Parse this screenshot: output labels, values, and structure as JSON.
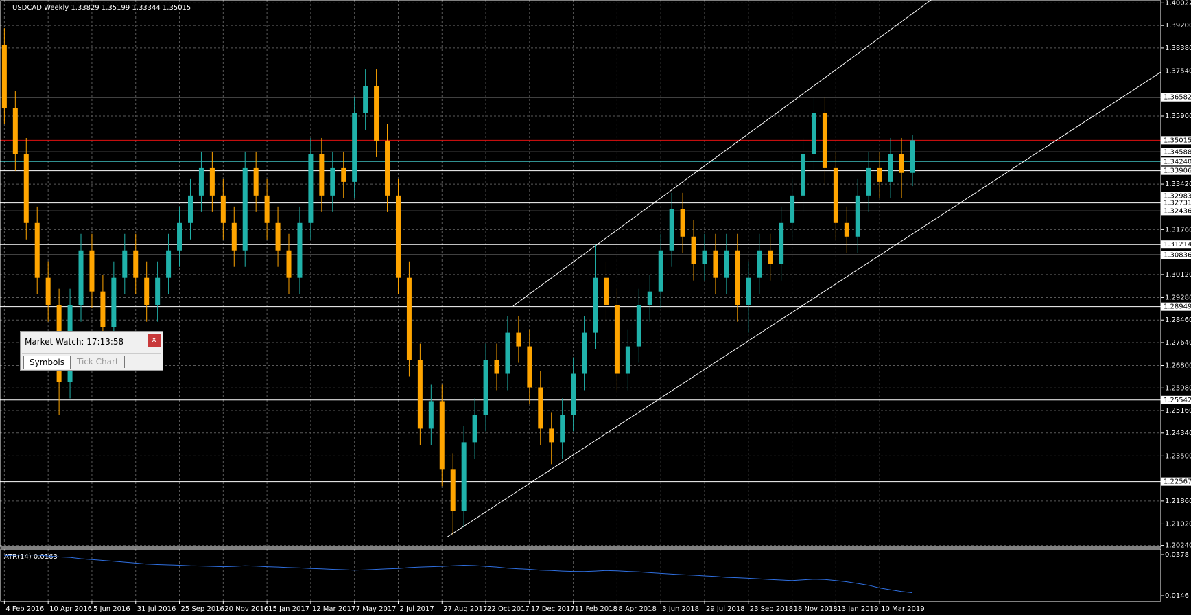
{
  "chart_data": {
    "type": "candlestick",
    "title": "USDCAD,Weekly  1.33829 1.35199 1.33344 1.35015",
    "up_color": "#20b2aa",
    "down_color": "#ffa500",
    "grid": true,
    "categories": [
      "4 Feb 2016",
      null,
      null,
      null,
      "10 Apr 2016",
      null,
      null,
      null,
      "5 Jun 2016",
      null,
      null,
      null,
      "31 Jul 2016",
      null,
      null,
      null,
      "25 Sep 2016",
      null,
      null,
      null,
      "20 Nov 2016",
      null,
      null,
      null,
      "15 Jan 2017",
      null,
      null,
      null,
      "12 Mar 2017",
      null,
      null,
      null,
      "7 May 2017",
      null,
      null,
      null,
      "2 Jul 2017",
      null,
      null,
      null,
      "27 Aug 2017",
      null,
      null,
      null,
      "22 Oct 2017",
      null,
      null,
      null,
      "17 Dec 2017",
      null,
      null,
      null,
      "11 Feb 2018",
      null,
      null,
      null,
      "8 Apr 2018",
      null,
      null,
      null,
      "3 Jun 2018",
      null,
      null,
      null,
      "29 Jul 2018",
      null,
      null,
      null,
      "23 Sep 2018",
      null,
      null,
      null,
      "18 Nov 2018",
      null,
      null,
      null,
      "13 Jan 2019",
      null,
      null,
      null,
      "10 Mar 2019",
      null,
      null,
      null
    ],
    "open": [
      1.385,
      1.362,
      1.345,
      1.32,
      1.3,
      1.29,
      1.262,
      1.29,
      1.31,
      1.295,
      1.282,
      1.3,
      1.31,
      1.3,
      1.29,
      1.3,
      1.31,
      1.32,
      1.33,
      1.34,
      1.33,
      1.32,
      1.31,
      1.34,
      1.33,
      1.32,
      1.31,
      1.3,
      1.32,
      1.345,
      1.33,
      1.34,
      1.335,
      1.36,
      1.37,
      1.35,
      1.33,
      1.3,
      1.27,
      1.245,
      1.255,
      1.23,
      1.215,
      1.24,
      1.25,
      1.27,
      1.265,
      1.28,
      1.275,
      1.26,
      1.245,
      1.24,
      1.25,
      1.265,
      1.28,
      1.3,
      1.29,
      1.265,
      1.275,
      1.29,
      1.295,
      1.31,
      1.325,
      1.315,
      1.305,
      1.31,
      1.3,
      1.31,
      1.29,
      1.3,
      1.31,
      1.305,
      1.32,
      1.33,
      1.345,
      1.36,
      1.34,
      1.32,
      1.315,
      1.33,
      1.34,
      1.335,
      1.345,
      1.33829
    ],
    "high": [
      1.391,
      1.368,
      1.351,
      1.326,
      1.306,
      1.296,
      1.296,
      1.316,
      1.316,
      1.301,
      1.306,
      1.316,
      1.316,
      1.306,
      1.306,
      1.316,
      1.326,
      1.336,
      1.346,
      1.346,
      1.336,
      1.326,
      1.346,
      1.346,
      1.336,
      1.326,
      1.316,
      1.326,
      1.351,
      1.351,
      1.346,
      1.346,
      1.366,
      1.376,
      1.376,
      1.356,
      1.336,
      1.306,
      1.276,
      1.261,
      1.261,
      1.236,
      1.246,
      1.256,
      1.276,
      1.276,
      1.286,
      1.286,
      1.281,
      1.266,
      1.251,
      1.256,
      1.271,
      1.286,
      1.312,
      1.306,
      1.296,
      1.281,
      1.296,
      1.301,
      1.316,
      1.331,
      1.331,
      1.321,
      1.316,
      1.316,
      1.316,
      1.316,
      1.306,
      1.316,
      1.316,
      1.326,
      1.336,
      1.351,
      1.366,
      1.366,
      1.346,
      1.326,
      1.336,
      1.346,
      1.346,
      1.351,
      1.351,
      1.35199
    ],
    "low": [
      1.356,
      1.339,
      1.314,
      1.294,
      1.284,
      1.25,
      1.256,
      1.284,
      1.289,
      1.276,
      1.276,
      1.294,
      1.294,
      1.284,
      1.284,
      1.294,
      1.304,
      1.314,
      1.324,
      1.324,
      1.314,
      1.304,
      1.304,
      1.324,
      1.314,
      1.304,
      1.294,
      1.294,
      1.314,
      1.324,
      1.324,
      1.329,
      1.329,
      1.354,
      1.344,
      1.324,
      1.294,
      1.264,
      1.239,
      1.239,
      1.224,
      1.206,
      1.209,
      1.234,
      1.244,
      1.259,
      1.259,
      1.269,
      1.254,
      1.239,
      1.232,
      1.234,
      1.244,
      1.259,
      1.274,
      1.284,
      1.259,
      1.259,
      1.269,
      1.284,
      1.289,
      1.304,
      1.309,
      1.299,
      1.299,
      1.294,
      1.294,
      1.284,
      1.28,
      1.294,
      1.299,
      1.299,
      1.314,
      1.324,
      1.339,
      1.334,
      1.314,
      1.309,
      1.309,
      1.324,
      1.329,
      1.329,
      1.329,
      1.33344
    ],
    "close": [
      1.362,
      1.345,
      1.32,
      1.3,
      1.29,
      1.262,
      1.29,
      1.31,
      1.295,
      1.282,
      1.3,
      1.31,
      1.3,
      1.29,
      1.3,
      1.31,
      1.32,
      1.33,
      1.34,
      1.33,
      1.32,
      1.31,
      1.34,
      1.33,
      1.32,
      1.31,
      1.3,
      1.32,
      1.345,
      1.33,
      1.34,
      1.335,
      1.36,
      1.37,
      1.35,
      1.33,
      1.3,
      1.27,
      1.245,
      1.255,
      1.23,
      1.215,
      1.24,
      1.25,
      1.27,
      1.265,
      1.28,
      1.275,
      1.26,
      1.245,
      1.24,
      1.25,
      1.265,
      1.28,
      1.3,
      1.29,
      1.265,
      1.275,
      1.29,
      1.295,
      1.31,
      1.325,
      1.315,
      1.305,
      1.31,
      1.3,
      1.31,
      1.29,
      1.3,
      1.31,
      1.305,
      1.32,
      1.33,
      1.345,
      1.36,
      1.34,
      1.32,
      1.315,
      1.33,
      1.34,
      1.335,
      1.345,
      1.33829,
      1.35015
    ],
    "xlim": [
      -0.4,
      105.7
    ],
    "ylim": [
      1.2018,
      1.4013
    ],
    "yticks": [
      {
        "value": 1.40022,
        "label": "1.40022"
      },
      {
        "value": 1.392,
        "label": "1.39200"
      },
      {
        "value": 1.3838,
        "label": "1.38380"
      },
      {
        "value": 1.3754,
        "label": "1.37540"
      },
      {
        "value": 1.359,
        "label": "1.35900"
      },
      {
        "value": 1.3342,
        "label": "1.33420"
      },
      {
        "value": 1.3176,
        "label": "1.31760"
      },
      {
        "value": 1.3012,
        "label": "1.30120"
      },
      {
        "value": 1.2928,
        "label": "1.29280"
      },
      {
        "value": 1.2846,
        "label": "1.28460"
      },
      {
        "value": 1.2764,
        "label": "1.27640"
      },
      {
        "value": 1.268,
        "label": "1.26800"
      },
      {
        "value": 1.2598,
        "label": "1.25980"
      },
      {
        "value": 1.2516,
        "label": "1.25160"
      },
      {
        "value": 1.2434,
        "label": "1.24340"
      },
      {
        "value": 1.235,
        "label": "1.23500"
      },
      {
        "value": 1.2186,
        "label": "1.21860"
      },
      {
        "value": 1.2102,
        "label": "1.21020"
      },
      {
        "value": 1.2024,
        "label": "1.20240"
      }
    ],
    "levels": [
      {
        "value": 1.36582,
        "label": "1.36582",
        "color": "#ffffff"
      },
      {
        "value": 1.35015,
        "label": "1.35015",
        "color": "#e01010"
      },
      {
        "value": 1.34588,
        "label": "1.34588",
        "color": "#ffffff"
      },
      {
        "value": 1.3424,
        "label": "1.34240",
        "color": "#40c0c0"
      },
      {
        "value": 1.33906,
        "label": "1.33906",
        "color": "#ffffff"
      },
      {
        "value": 1.32983,
        "label": "1.32983",
        "color": "#ffffff"
      },
      {
        "value": 1.32731,
        "label": "1.32731",
        "color": "#ffffff"
      },
      {
        "value": 1.32436,
        "label": "1.32436",
        "color": "#ffffff"
      },
      {
        "value": 1.31214,
        "label": "1.31214",
        "color": "#ffffff"
      },
      {
        "value": 1.30836,
        "label": "1.30836",
        "color": "#ffffff"
      },
      {
        "value": 1.28949,
        "label": "1.28949",
        "color": "#ffffff"
      },
      {
        "value": 1.25542,
        "label": "1.25542",
        "color": "#ffffff"
      },
      {
        "value": 1.22567,
        "label": "1.22567",
        "color": "#ffffff"
      }
    ],
    "trendlines": [
      {
        "x": [
          40.5,
          105.7
        ],
        "y": [
          1.2055,
          1.375
        ],
        "color": "#ffffff"
      },
      {
        "x": [
          46.5,
          84.7
        ],
        "y": [
          1.2897,
          1.4013
        ],
        "color": "#ffffff"
      }
    ],
    "atr": {
      "title": "ATR(14) 0.0163",
      "color": "#2f6fe0",
      "ylim": [
        0.0115,
        0.0409
      ],
      "yticks": [
        0.0378,
        0.0146
      ],
      "values": [
        0.0372,
        0.0374,
        0.0376,
        0.0375,
        0.037,
        0.0365,
        0.0362,
        0.0355,
        0.035,
        0.0345,
        0.034,
        0.0335,
        0.033,
        0.0325,
        0.0322,
        0.032,
        0.0318,
        0.0315,
        0.0314,
        0.0312,
        0.031,
        0.0312,
        0.0315,
        0.0313,
        0.031,
        0.0308,
        0.0305,
        0.0303,
        0.03,
        0.0298,
        0.0295,
        0.0293,
        0.029,
        0.0292,
        0.0295,
        0.0298,
        0.03,
        0.0305,
        0.0308,
        0.031,
        0.0312,
        0.0315,
        0.0318,
        0.0316,
        0.0312,
        0.0308,
        0.0302,
        0.0298,
        0.0295,
        0.029,
        0.0288,
        0.0285,
        0.0283,
        0.0282,
        0.0285,
        0.0288,
        0.0286,
        0.0283,
        0.028,
        0.0276,
        0.0272,
        0.0268,
        0.0265,
        0.0262,
        0.0258,
        0.0255,
        0.025,
        0.0248,
        0.0245,
        0.0242,
        0.0238,
        0.0235,
        0.0232,
        0.0236,
        0.024,
        0.0238,
        0.0232,
        0.0225,
        0.0215,
        0.0205,
        0.019,
        0.018,
        0.017,
        0.0163
      ]
    }
  },
  "ui": {
    "market_watch": {
      "title": "Market Watch: 17:13:58",
      "close": "x",
      "tabs": [
        "Symbols",
        "Tick Chart"
      ]
    }
  }
}
